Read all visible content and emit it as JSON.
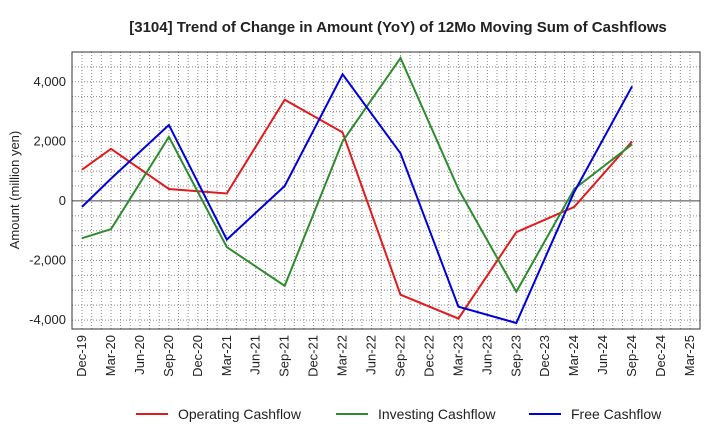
{
  "chart_data": {
    "type": "line",
    "title": "[3104]  Trend of Change in Amount (YoY) of 12Mo Moving Sum of Cashflows",
    "xlabel": "",
    "ylabel": "Amount (million yen)",
    "ylim": [
      -4300,
      5000
    ],
    "yticks": [
      4000,
      2000,
      0,
      -2000,
      -4000
    ],
    "ytick_labels": [
      "4,000",
      "2,000",
      "0",
      "-2,000",
      "-4,000"
    ],
    "categories": [
      "Dec-19",
      "Mar-20",
      "Jun-20",
      "Sep-20",
      "Dec-20",
      "Mar-21",
      "Jun-21",
      "Sep-21",
      "Dec-21",
      "Mar-22",
      "Jun-22",
      "Sep-22",
      "Dec-22",
      "Mar-23",
      "Jun-23",
      "Sep-23",
      "Dec-23",
      "Mar-24",
      "Jun-24",
      "Sep-24",
      "Dec-24",
      "Mar-25"
    ],
    "grid": true,
    "legend_position": "bottom",
    "series": [
      {
        "name": "Operating Cashflow",
        "color": "#e31a1c",
        "points": [
          [
            0,
            1050
          ],
          [
            1,
            1750
          ],
          [
            3,
            400
          ],
          [
            5,
            250
          ],
          [
            7,
            3400
          ],
          [
            9,
            2300
          ],
          [
            11,
            -3150
          ],
          [
            13,
            -3950
          ],
          [
            15,
            -1050
          ],
          [
            17,
            -200
          ],
          [
            19,
            2000
          ]
        ]
      },
      {
        "name": "Investing Cashflow",
        "color": "#2e8b2e",
        "points": [
          [
            0,
            -1250
          ],
          [
            1,
            -950
          ],
          [
            3,
            2150
          ],
          [
            5,
            -1550
          ],
          [
            7,
            -2850
          ],
          [
            9,
            2000
          ],
          [
            11,
            4800
          ],
          [
            13,
            400
          ],
          [
            15,
            -3050
          ],
          [
            17,
            400
          ],
          [
            19,
            1900
          ]
        ]
      },
      {
        "name": "Free Cashflow",
        "color": "#0000dd",
        "points": [
          [
            0,
            -200
          ],
          [
            1,
            750
          ],
          [
            3,
            2550
          ],
          [
            5,
            -1300
          ],
          [
            7,
            500
          ],
          [
            9,
            4250
          ],
          [
            11,
            1600
          ],
          [
            13,
            -3550
          ],
          [
            15,
            -4100
          ],
          [
            17,
            300
          ],
          [
            19,
            3850
          ]
        ]
      }
    ]
  }
}
